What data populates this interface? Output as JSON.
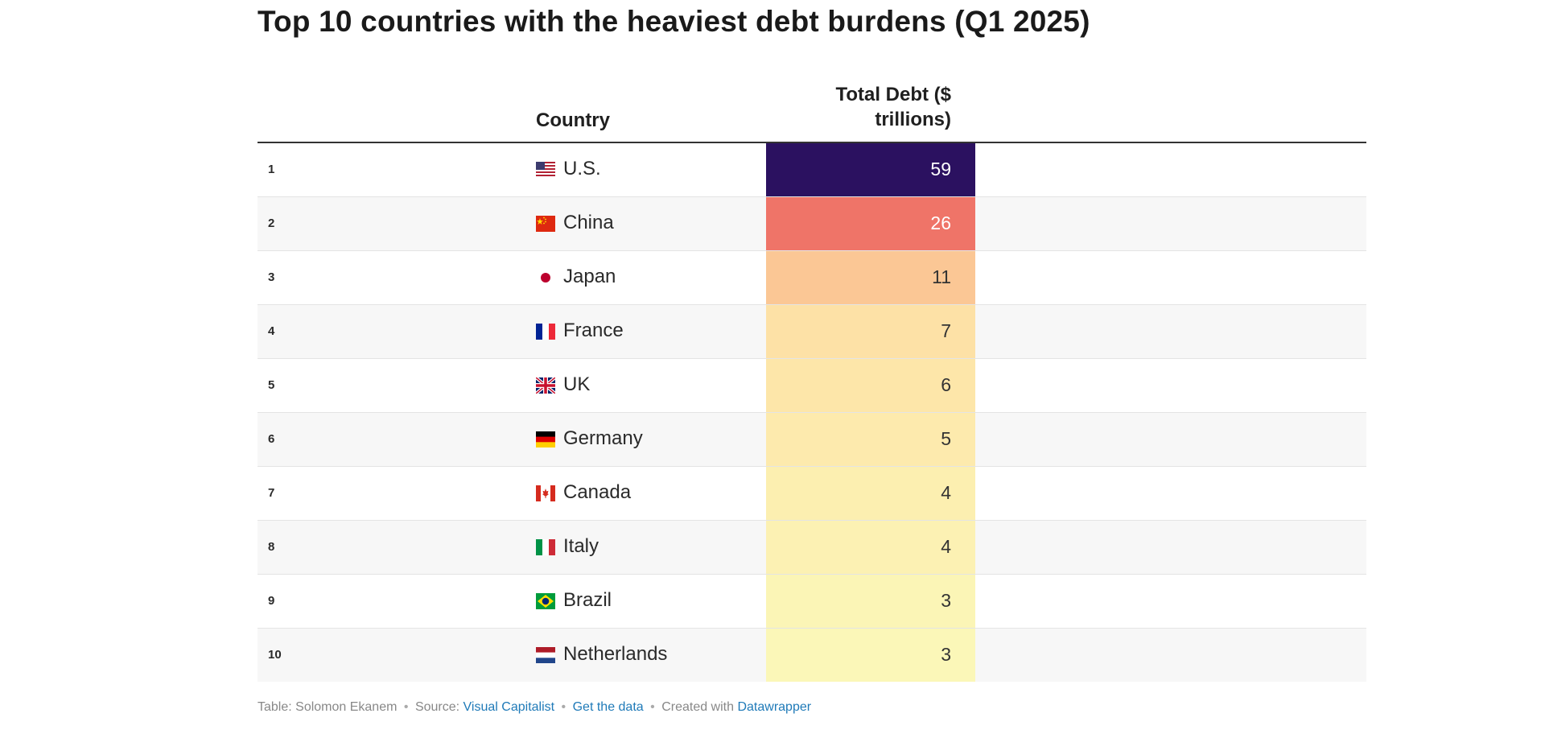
{
  "title": "Top 10 countries with the heaviest debt burdens (Q1 2025)",
  "header": {
    "country": "Country",
    "debt_line1": "Total Debt ($",
    "debt_line2": "trillions)"
  },
  "chart_data": {
    "type": "table",
    "columns": [
      "",
      "Country",
      "Total Debt ($ trillions)"
    ],
    "color_scale": "heatmap: pale yellow (low) to orange, coral, dark purple (high)",
    "rows": [
      {
        "rank": "1",
        "country": "U.S.",
        "flag": "us-flag-icon",
        "debt": "59",
        "value": 59,
        "color": "#2b1160",
        "text_color": "#ffffff"
      },
      {
        "rank": "2",
        "country": "China",
        "flag": "china-flag-icon",
        "debt": "26",
        "value": 26,
        "color": "#ef7468",
        "text_color": "#ffffff"
      },
      {
        "rank": "3",
        "country": "Japan",
        "flag": "japan-flag-icon",
        "debt": "11",
        "value": 11,
        "color": "#fbc795",
        "text_color": "#333333"
      },
      {
        "rank": "4",
        "country": "France",
        "flag": "france-flag-icon",
        "debt": "7",
        "value": 7,
        "color": "#fde1a6",
        "text_color": "#333333"
      },
      {
        "rank": "5",
        "country": "UK",
        "flag": "uk-flag-icon",
        "debt": "6",
        "value": 6,
        "color": "#fde6a9",
        "text_color": "#333333"
      },
      {
        "rank": "6",
        "country": "Germany",
        "flag": "germany-flag-icon",
        "debt": "5",
        "value": 5,
        "color": "#fdeaad",
        "text_color": "#333333"
      },
      {
        "rank": "7",
        "country": "Canada",
        "flag": "canada-flag-icon",
        "debt": "4",
        "value": 4,
        "color": "#fcefb0",
        "text_color": "#333333"
      },
      {
        "rank": "8",
        "country": "Italy",
        "flag": "italy-flag-icon",
        "debt": "4",
        "value": 4,
        "color": "#fcf1b3",
        "text_color": "#333333"
      },
      {
        "rank": "9",
        "country": "Brazil",
        "flag": "brazil-flag-icon",
        "debt": "3",
        "value": 3,
        "color": "#fbf5b6",
        "text_color": "#333333"
      },
      {
        "rank": "10",
        "country": "Netherlands",
        "flag": "netherlands-flag-icon",
        "debt": "3",
        "value": 3,
        "color": "#fbf7b8",
        "text_color": "#333333"
      }
    ]
  },
  "footer": {
    "table_by": "Table: Solomon Ekanem",
    "source_label": "Source:",
    "source": "Visual Capitalist",
    "get_data": "Get the data",
    "created_with": "Created with",
    "tool": "Datawrapper",
    "separator": "•"
  }
}
